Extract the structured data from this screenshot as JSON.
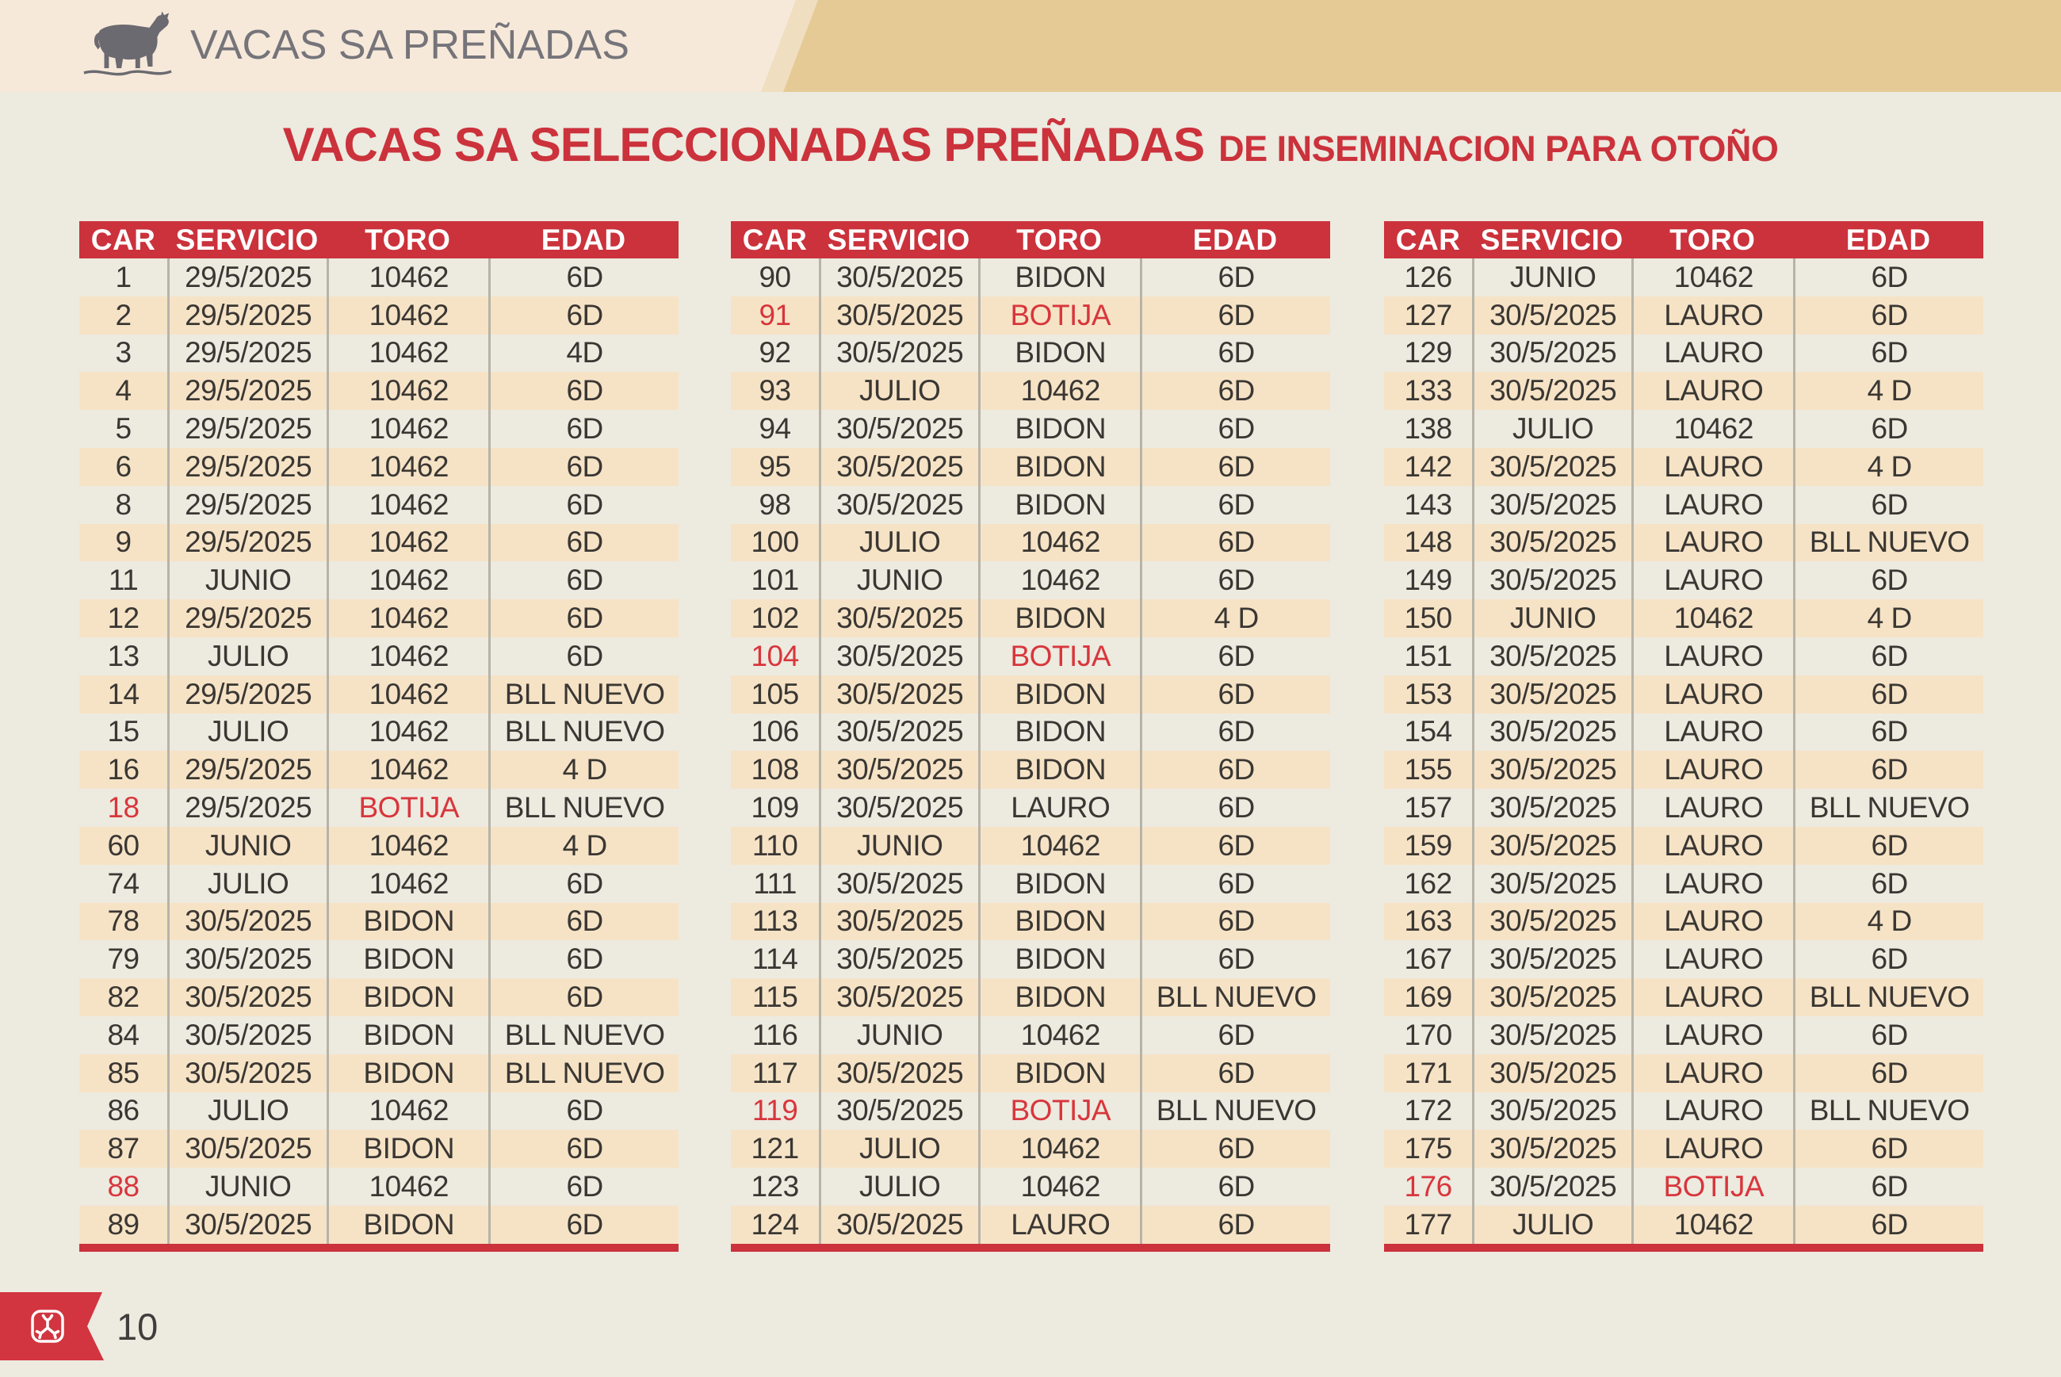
{
  "colors": {
    "page_bg": "#EDEAE0",
    "topbar_bg": "#F7E9DA",
    "wedge_tan": "#E5CA96",
    "wedge_stripe": "#EFDEC0",
    "accent_red": "#CB323B",
    "ribbon_red": "#D2353F",
    "row_tan": "#F6E3C6",
    "text_dark": "#3A3733",
    "text_red": "#D8363C",
    "divider": "#B7B3A8",
    "topbar_text": "#75747A",
    "page_number_text": "#3F3E3C"
  },
  "header": {
    "app_title": "VACAS SA PREÑADAS"
  },
  "title": {
    "main": "VACAS SA SELECCIONADAS PREÑADAS",
    "suffix": "DE INSEMINACION PARA OTOÑO"
  },
  "columns": [
    "CAR",
    "SERVICIO",
    "TORO",
    "EDAD"
  ],
  "tables": [
    {
      "rows": [
        [
          "1",
          "29/5/2025",
          "10462",
          "6D",
          ""
        ],
        [
          "2",
          "29/5/2025",
          "10462",
          "6D",
          ""
        ],
        [
          "3",
          "29/5/2025",
          "10462",
          "4D",
          ""
        ],
        [
          "4",
          "29/5/2025",
          "10462",
          "6D",
          ""
        ],
        [
          "5",
          "29/5/2025",
          "10462",
          "6D",
          ""
        ],
        [
          "6",
          "29/5/2025",
          "10462",
          "6D",
          ""
        ],
        [
          "8",
          "29/5/2025",
          "10462",
          "6D",
          ""
        ],
        [
          "9",
          "29/5/2025",
          "10462",
          "6D",
          ""
        ],
        [
          "11",
          "JUNIO",
          "10462",
          "6D",
          ""
        ],
        [
          "12",
          "29/5/2025",
          "10462",
          "6D",
          ""
        ],
        [
          "13",
          "JULIO",
          "10462",
          "6D",
          ""
        ],
        [
          "14",
          "29/5/2025",
          "10462",
          "BLL NUEVO",
          ""
        ],
        [
          "15",
          "JULIO",
          "10462",
          "BLL NUEVO",
          ""
        ],
        [
          "16",
          "29/5/2025",
          "10462",
          "4 D",
          ""
        ],
        [
          "18",
          "29/5/2025",
          "BOTIJA",
          "BLL NUEVO",
          "car toro"
        ],
        [
          "60",
          "JUNIO",
          "10462",
          "4 D",
          ""
        ],
        [
          "74",
          "JULIO",
          "10462",
          "6D",
          ""
        ],
        [
          "78",
          "30/5/2025",
          "BIDON",
          "6D",
          ""
        ],
        [
          "79",
          "30/5/2025",
          "BIDON",
          "6D",
          ""
        ],
        [
          "82",
          "30/5/2025",
          "BIDON",
          "6D",
          ""
        ],
        [
          "84",
          "30/5/2025",
          "BIDON",
          "BLL NUEVO",
          ""
        ],
        [
          "85",
          "30/5/2025",
          "BIDON",
          "BLL NUEVO",
          ""
        ],
        [
          "86",
          "JULIO",
          "10462",
          "6D",
          ""
        ],
        [
          "87",
          "30/5/2025",
          "BIDON",
          "6D",
          ""
        ],
        [
          "88",
          "JUNIO",
          "10462",
          "6D",
          "car"
        ],
        [
          "89",
          "30/5/2025",
          "BIDON",
          "6D",
          ""
        ]
      ]
    },
    {
      "rows": [
        [
          "90",
          "30/5/2025",
          "BIDON",
          "6D",
          ""
        ],
        [
          "91",
          "30/5/2025",
          "BOTIJA",
          "6D",
          "car toro"
        ],
        [
          "92",
          "30/5/2025",
          "BIDON",
          "6D",
          ""
        ],
        [
          "93",
          "JULIO",
          "10462",
          "6D",
          ""
        ],
        [
          "94",
          "30/5/2025",
          "BIDON",
          "6D",
          ""
        ],
        [
          "95",
          "30/5/2025",
          "BIDON",
          "6D",
          ""
        ],
        [
          "98",
          "30/5/2025",
          "BIDON",
          "6D",
          ""
        ],
        [
          "100",
          "JULIO",
          "10462",
          "6D",
          ""
        ],
        [
          "101",
          "JUNIO",
          "10462",
          "6D",
          ""
        ],
        [
          "102",
          "30/5/2025",
          "BIDON",
          "4 D",
          ""
        ],
        [
          "104",
          "30/5/2025",
          "BOTIJA",
          "6D",
          "car toro"
        ],
        [
          "105",
          "30/5/2025",
          "BIDON",
          "6D",
          ""
        ],
        [
          "106",
          "30/5/2025",
          "BIDON",
          "6D",
          ""
        ],
        [
          "108",
          "30/5/2025",
          "BIDON",
          "6D",
          ""
        ],
        [
          "109",
          "30/5/2025",
          "LAURO",
          "6D",
          ""
        ],
        [
          "110",
          "JUNIO",
          "10462",
          "6D",
          ""
        ],
        [
          "111",
          "30/5/2025",
          "BIDON",
          "6D",
          ""
        ],
        [
          "113",
          "30/5/2025",
          "BIDON",
          "6D",
          ""
        ],
        [
          "114",
          "30/5/2025",
          "BIDON",
          "6D",
          ""
        ],
        [
          "115",
          "30/5/2025",
          "BIDON",
          "BLL NUEVO",
          ""
        ],
        [
          "116",
          "JUNIO",
          "10462",
          "6D",
          ""
        ],
        [
          "117",
          "30/5/2025",
          "BIDON",
          "6D",
          ""
        ],
        [
          "119",
          "30/5/2025",
          "BOTIJA",
          "BLL NUEVO",
          "car toro"
        ],
        [
          "121",
          "JULIO",
          "10462",
          "6D",
          ""
        ],
        [
          "123",
          "JULIO",
          "10462",
          "6D",
          ""
        ],
        [
          "124",
          "30/5/2025",
          "LAURO",
          "6D",
          ""
        ]
      ]
    },
    {
      "rows": [
        [
          "126",
          "JUNIO",
          "10462",
          "6D",
          ""
        ],
        [
          "127",
          "30/5/2025",
          "LAURO",
          "6D",
          ""
        ],
        [
          "129",
          "30/5/2025",
          "LAURO",
          "6D",
          ""
        ],
        [
          "133",
          "30/5/2025",
          "LAURO",
          "4 D",
          ""
        ],
        [
          "138",
          "JULIO",
          "10462",
          "6D",
          ""
        ],
        [
          "142",
          "30/5/2025",
          "LAURO",
          "4 D",
          ""
        ],
        [
          "143",
          "30/5/2025",
          "LAURO",
          "6D",
          ""
        ],
        [
          "148",
          "30/5/2025",
          "LAURO",
          "BLL NUEVO",
          ""
        ],
        [
          "149",
          "30/5/2025",
          "LAURO",
          "6D",
          ""
        ],
        [
          "150",
          "JUNIO",
          "10462",
          "4 D",
          ""
        ],
        [
          "151",
          "30/5/2025",
          "LAURO",
          "6D",
          ""
        ],
        [
          "153",
          "30/5/2025",
          "LAURO",
          "6D",
          ""
        ],
        [
          "154",
          "30/5/2025",
          "LAURO",
          "6D",
          ""
        ],
        [
          "155",
          "30/5/2025",
          "LAURO",
          "6D",
          ""
        ],
        [
          "157",
          "30/5/2025",
          "LAURO",
          "BLL NUEVO",
          ""
        ],
        [
          "159",
          "30/5/2025",
          "LAURO",
          "6D",
          ""
        ],
        [
          "162",
          "30/5/2025",
          "LAURO",
          "6D",
          ""
        ],
        [
          "163",
          "30/5/2025",
          "LAURO",
          "4 D",
          ""
        ],
        [
          "167",
          "30/5/2025",
          "LAURO",
          "6D",
          ""
        ],
        [
          "169",
          "30/5/2025",
          "LAURO",
          "BLL NUEVO",
          ""
        ],
        [
          "170",
          "30/5/2025",
          "LAURO",
          "6D",
          ""
        ],
        [
          "171",
          "30/5/2025",
          "LAURO",
          "6D",
          ""
        ],
        [
          "172",
          "30/5/2025",
          "LAURO",
          "BLL NUEVO",
          ""
        ],
        [
          "175",
          "30/5/2025",
          "LAURO",
          "6D",
          ""
        ],
        [
          "176",
          "30/5/2025",
          "BOTIJA",
          "6D",
          "car toro"
        ],
        [
          "177",
          "JULIO",
          "10462",
          "6D",
          ""
        ]
      ]
    }
  ],
  "footer": {
    "page_number": "10"
  }
}
